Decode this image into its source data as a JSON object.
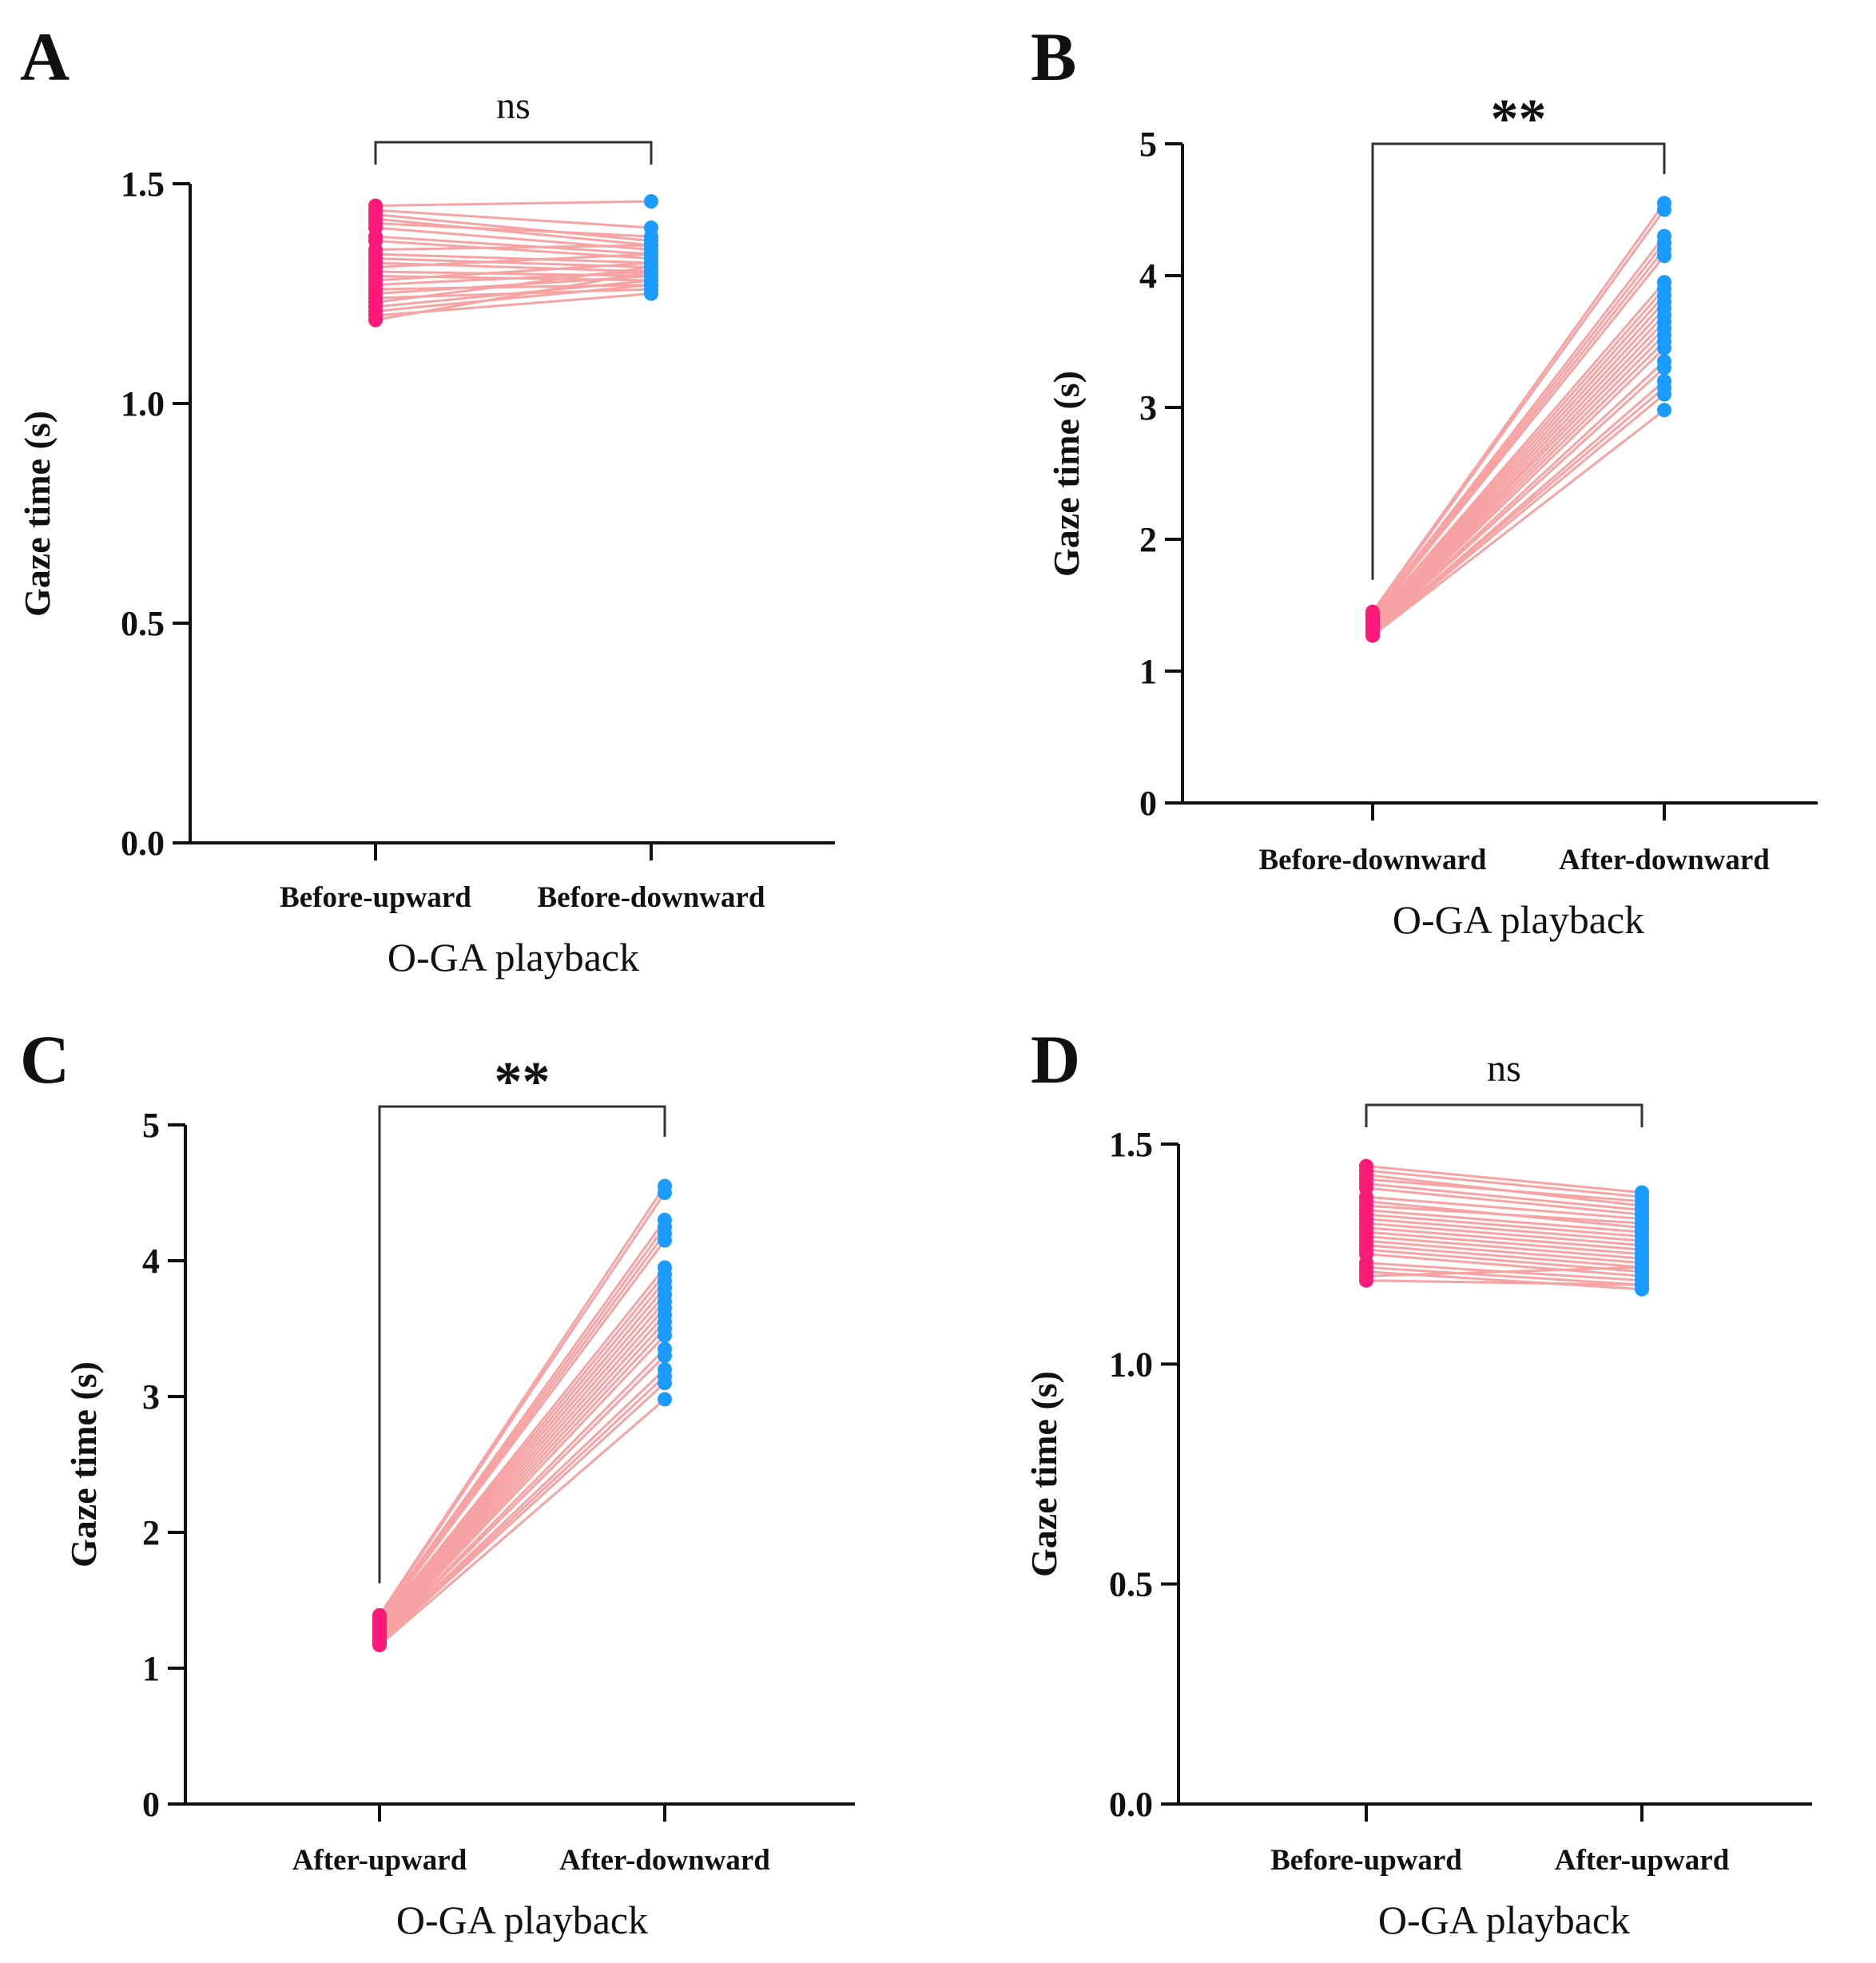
{
  "colors": {
    "before_points": "#ff1a7a",
    "after_points": "#1a9bff",
    "pair_lines": "#f7a3a3",
    "axis": "#111111"
  },
  "chart_data": [
    {
      "panel": "A",
      "type": "scatter",
      "subtype": "paired-points",
      "title": "",
      "xlabel": "O-GA playback",
      "ylabel": "Gaze time (s)",
      "categories": [
        "Before-upward",
        "Before-downward"
      ],
      "ylim": [
        0,
        1.5
      ],
      "yticks": [
        0.0,
        0.5,
        1.0,
        1.5
      ],
      "ytick_labels": [
        "0.0",
        "0.5",
        "1.0",
        "1.5"
      ],
      "significance": "ns",
      "grid": false,
      "pairs": [
        [
          1.45,
          1.46
        ],
        [
          1.44,
          1.4
        ],
        [
          1.43,
          1.37
        ],
        [
          1.42,
          1.36
        ],
        [
          1.41,
          1.38
        ],
        [
          1.4,
          1.35
        ],
        [
          1.38,
          1.34
        ],
        [
          1.37,
          1.33
        ],
        [
          1.35,
          1.36
        ],
        [
          1.34,
          1.32
        ],
        [
          1.33,
          1.31
        ],
        [
          1.32,
          1.3
        ],
        [
          1.31,
          1.34
        ],
        [
          1.3,
          1.29
        ],
        [
          1.29,
          1.28
        ],
        [
          1.28,
          1.32
        ],
        [
          1.27,
          1.3
        ],
        [
          1.26,
          1.27
        ],
        [
          1.25,
          1.29
        ],
        [
          1.24,
          1.26
        ],
        [
          1.23,
          1.31
        ],
        [
          1.22,
          1.28
        ],
        [
          1.21,
          1.27
        ],
        [
          1.2,
          1.25
        ],
        [
          1.19,
          1.3
        ]
      ]
    },
    {
      "panel": "B",
      "type": "scatter",
      "subtype": "paired-points",
      "title": "",
      "xlabel": "O-GA playback",
      "ylabel": "Gaze time (s)",
      "categories": [
        "Before-downward",
        "After-downward"
      ],
      "ylim": [
        0,
        5
      ],
      "yticks": [
        0,
        1,
        2,
        3,
        4,
        5
      ],
      "ytick_labels": [
        "0",
        "1",
        "2",
        "3",
        "4",
        "5"
      ],
      "significance": "**",
      "grid": false,
      "pairs": [
        [
          1.45,
          4.55
        ],
        [
          1.44,
          4.5
        ],
        [
          1.43,
          4.3
        ],
        [
          1.42,
          4.25
        ],
        [
          1.41,
          4.2
        ],
        [
          1.4,
          4.15
        ],
        [
          1.39,
          3.95
        ],
        [
          1.38,
          3.9
        ],
        [
          1.37,
          3.85
        ],
        [
          1.36,
          3.8
        ],
        [
          1.35,
          3.75
        ],
        [
          1.34,
          3.7
        ],
        [
          1.33,
          3.65
        ],
        [
          1.33,
          3.6
        ],
        [
          1.32,
          3.55
        ],
        [
          1.31,
          3.5
        ],
        [
          1.3,
          3.45
        ],
        [
          1.3,
          3.35
        ],
        [
          1.29,
          3.3
        ],
        [
          1.28,
          3.2
        ],
        [
          1.28,
          3.15
        ],
        [
          1.27,
          3.1
        ],
        [
          1.27,
          2.98
        ]
      ]
    },
    {
      "panel": "C",
      "type": "scatter",
      "subtype": "paired-points",
      "title": "",
      "xlabel": "O-GA playback",
      "ylabel": "Gaze time (s)",
      "categories": [
        "After-upward",
        "After-downward"
      ],
      "ylim": [
        0,
        5
      ],
      "yticks": [
        0,
        1,
        2,
        3,
        4,
        5
      ],
      "ytick_labels": [
        "0",
        "1",
        "2",
        "3",
        "4",
        "5"
      ],
      "significance": "**",
      "grid": false,
      "pairs": [
        [
          1.39,
          4.55
        ],
        [
          1.38,
          4.5
        ],
        [
          1.37,
          4.3
        ],
        [
          1.36,
          4.25
        ],
        [
          1.35,
          4.2
        ],
        [
          1.34,
          4.15
        ],
        [
          1.33,
          3.95
        ],
        [
          1.32,
          3.9
        ],
        [
          1.31,
          3.85
        ],
        [
          1.3,
          3.8
        ],
        [
          1.29,
          3.75
        ],
        [
          1.28,
          3.7
        ],
        [
          1.27,
          3.65
        ],
        [
          1.26,
          3.6
        ],
        [
          1.25,
          3.55
        ],
        [
          1.24,
          3.5
        ],
        [
          1.23,
          3.45
        ],
        [
          1.22,
          3.35
        ],
        [
          1.21,
          3.3
        ],
        [
          1.2,
          3.2
        ],
        [
          1.19,
          3.15
        ],
        [
          1.18,
          3.1
        ],
        [
          1.17,
          2.98
        ]
      ]
    },
    {
      "panel": "D",
      "type": "scatter",
      "subtype": "paired-points",
      "title": "",
      "xlabel": "O-GA playback",
      "ylabel": "Gaze time (s)",
      "categories": [
        "Before-upward",
        "After-upward"
      ],
      "ylim": [
        0,
        1.5
      ],
      "yticks": [
        0.0,
        0.5,
        1.0,
        1.5
      ],
      "ytick_labels": [
        "0.0",
        "0.5",
        "1.0",
        "1.5"
      ],
      "significance": "ns",
      "grid": false,
      "pairs": [
        [
          1.45,
          1.39
        ],
        [
          1.44,
          1.38
        ],
        [
          1.43,
          1.36
        ],
        [
          1.42,
          1.37
        ],
        [
          1.41,
          1.35
        ],
        [
          1.4,
          1.34
        ],
        [
          1.38,
          1.33
        ],
        [
          1.37,
          1.31
        ],
        [
          1.36,
          1.32
        ],
        [
          1.35,
          1.3
        ],
        [
          1.34,
          1.29
        ],
        [
          1.33,
          1.28
        ],
        [
          1.32,
          1.27
        ],
        [
          1.31,
          1.26
        ],
        [
          1.3,
          1.25
        ],
        [
          1.29,
          1.24
        ],
        [
          1.28,
          1.23
        ],
        [
          1.27,
          1.22
        ],
        [
          1.26,
          1.21
        ],
        [
          1.25,
          1.2
        ],
        [
          1.23,
          1.19
        ],
        [
          1.22,
          1.18
        ],
        [
          1.21,
          1.17
        ],
        [
          1.2,
          1.22
        ],
        [
          1.19,
          1.18
        ]
      ]
    }
  ]
}
